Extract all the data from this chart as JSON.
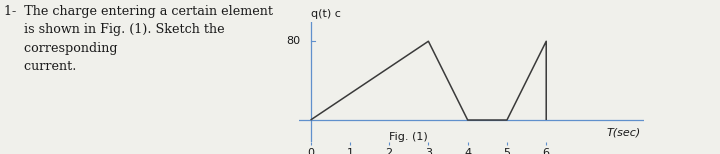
{
  "title_lines": [
    "1-  The charge entering a certain element",
    "     is shown in Fig. (1). Sketch the",
    "     corresponding",
    "     current."
  ],
  "ylabel_top": "q(t) c",
  "ylabel_80": "80",
  "xlabel": "T(sec)",
  "fig_label": "Fig. (1)",
  "x_ticks": [
    0,
    1,
    2,
    3,
    4,
    5,
    6
  ],
  "x_data": [
    0,
    3,
    4,
    5,
    6,
    6
  ],
  "y_data": [
    0,
    80,
    0,
    0,
    80,
    0
  ],
  "line_color": "#3a3a3a",
  "bg_color": "#f0f0eb",
  "text_color": "#1a1a1a",
  "axis_color": "#6090cc",
  "xlim": [
    -0.3,
    8.5
  ],
  "ylim": [
    -22,
    100
  ],
  "title_fontsize": 9.2,
  "tick_fontsize": 8.0,
  "label_fontsize": 8.0,
  "annot_fontsize": 8.0
}
